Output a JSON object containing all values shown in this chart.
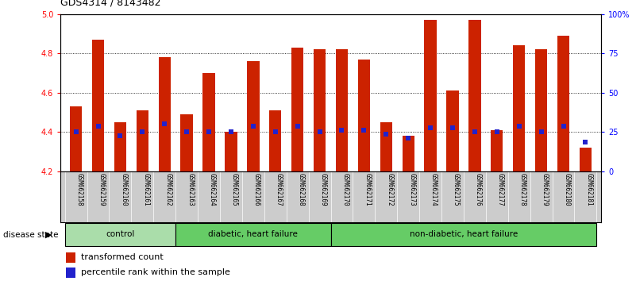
{
  "title": "GDS4314 / 8143482",
  "samples": [
    "GSM662158",
    "GSM662159",
    "GSM662160",
    "GSM662161",
    "GSM662162",
    "GSM662163",
    "GSM662164",
    "GSM662165",
    "GSM662166",
    "GSM662167",
    "GSM662168",
    "GSM662169",
    "GSM662170",
    "GSM662171",
    "GSM662172",
    "GSM662173",
    "GSM662174",
    "GSM662175",
    "GSM662176",
    "GSM662177",
    "GSM662178",
    "GSM662179",
    "GSM662180",
    "GSM662181"
  ],
  "bar_tops": [
    4.53,
    4.87,
    4.45,
    4.51,
    4.78,
    4.49,
    4.7,
    4.4,
    4.76,
    4.51,
    4.83,
    4.82,
    4.82,
    4.77,
    4.45,
    4.38,
    4.97,
    4.61,
    4.97,
    4.41,
    4.84,
    4.82,
    4.89,
    4.32
  ],
  "bar_bottom": 4.2,
  "blue_dots": [
    4.4,
    4.43,
    4.38,
    4.4,
    4.44,
    4.4,
    4.4,
    4.4,
    4.43,
    4.4,
    4.43,
    4.4,
    4.41,
    4.41,
    4.39,
    4.37,
    4.42,
    4.42,
    4.4,
    4.4,
    4.43,
    4.4,
    4.43,
    4.35
  ],
  "group_starts": [
    0,
    5,
    12
  ],
  "group_ends": [
    4,
    11,
    23
  ],
  "group_labels": [
    "control",
    "diabetic, heart failure",
    "non-diabetic, heart failure"
  ],
  "group_colors": [
    "#aaddaa",
    "#66cc66",
    "#66cc66"
  ],
  "ylim_left": [
    4.2,
    5.0
  ],
  "ylim_right": [
    0,
    100
  ],
  "yticks_left": [
    4.2,
    4.4,
    4.6,
    4.8,
    5.0
  ],
  "yticks_right": [
    0,
    25,
    50,
    75,
    100
  ],
  "yticklabels_right": [
    "0",
    "25",
    "50",
    "75",
    "100%"
  ],
  "bar_color": "#cc2200",
  "dot_color": "#2222cc",
  "bar_width": 0.55,
  "bg_color": "#ffffff",
  "label_bar": "transformed count",
  "label_dot": "percentile rank within the sample",
  "disease_state_label": "disease state",
  "title_fontsize": 9,
  "tick_fontsize": 7,
  "sample_fontsize": 5.5,
  "group_fontsize": 7.5,
  "legend_fontsize": 8
}
